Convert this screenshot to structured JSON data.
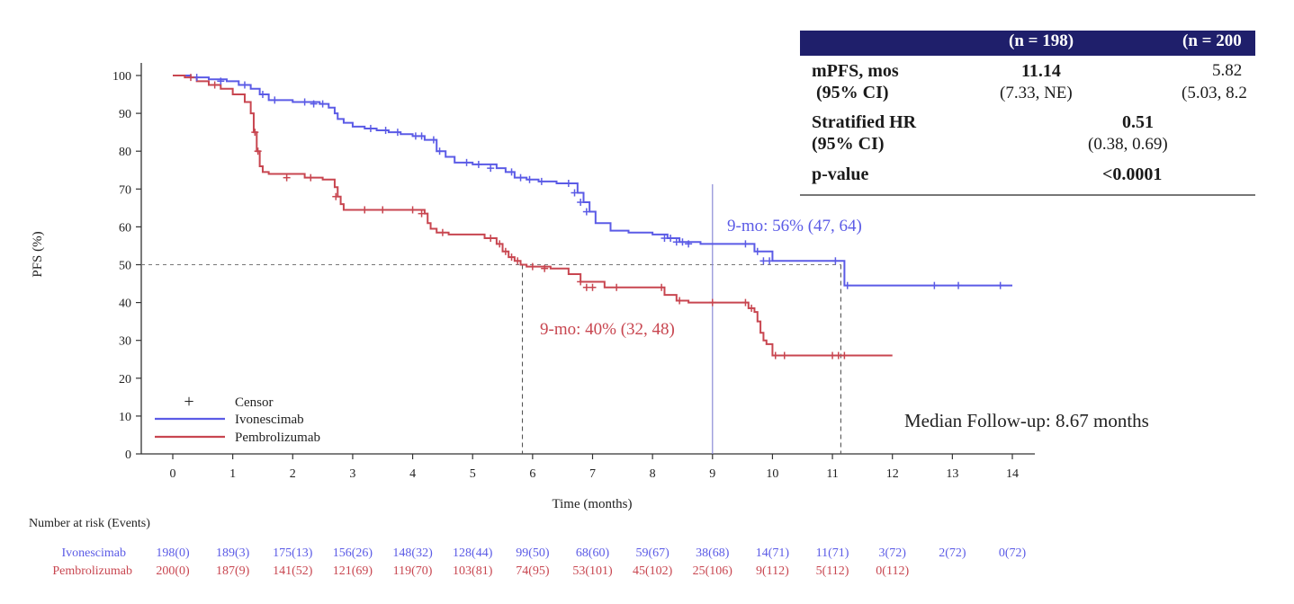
{
  "chart_data": {
    "type": "line",
    "subtype": "kaplan-meier",
    "ylabel": "PFS (%)",
    "xlabel": "Time (months)",
    "xlim": [
      0,
      14
    ],
    "ylim": [
      0,
      100
    ],
    "x_ticks": [
      0,
      1,
      2,
      3,
      4,
      5,
      6,
      7,
      8,
      9,
      10,
      11,
      12,
      13,
      14
    ],
    "y_ticks": [
      0,
      10,
      20,
      30,
      40,
      50,
      60,
      70,
      80,
      90,
      100
    ],
    "grid": false,
    "legend": {
      "placement": "bottom-left",
      "censor_label": "Censor",
      "censor_symbol": "+"
    },
    "series": [
      {
        "name": "Ivonescimab",
        "color": "#5b5be6",
        "x": [
          0,
          0.3,
          0.6,
          0.9,
          1.1,
          1.3,
          1.45,
          1.6,
          2.0,
          2.45,
          2.6,
          2.7,
          2.75,
          2.85,
          3.0,
          3.2,
          3.4,
          3.6,
          3.8,
          4.0,
          4.2,
          4.4,
          4.55,
          4.7,
          5.0,
          5.4,
          5.55,
          5.7,
          5.9,
          6.1,
          6.4,
          6.75,
          6.85,
          6.95,
          7.05,
          7.3,
          7.6,
          8.0,
          8.25,
          8.45,
          8.8,
          9.3,
          9.6,
          9.7,
          10.0,
          10.5,
          11.0,
          11.1,
          11.2,
          11.5,
          12.0,
          13.0,
          13.5,
          14.0
        ],
        "y": [
          100,
          99.5,
          99,
          98.5,
          97.5,
          96.5,
          95,
          93.5,
          93,
          92.5,
          91.5,
          90,
          88.5,
          87.5,
          86.5,
          86,
          85.5,
          85,
          84.5,
          84,
          83,
          80,
          78.5,
          77,
          76.5,
          75.5,
          74.5,
          73,
          72.5,
          72,
          71.5,
          69,
          66.5,
          64,
          61,
          59,
          58.5,
          58,
          57,
          56,
          55.5,
          55.5,
          55.5,
          53.5,
          51,
          51,
          51,
          51,
          44.5,
          44.5,
          44.5,
          44.5,
          44.5,
          44.5
        ],
        "censor_x": [
          0.4,
          0.8,
          1.2,
          1.5,
          1.7,
          2.2,
          2.35,
          2.5,
          3.3,
          3.55,
          3.75,
          4.05,
          4.15,
          4.35,
          4.45,
          4.9,
          5.1,
          5.3,
          5.65,
          5.8,
          5.95,
          6.15,
          6.6,
          6.7,
          6.8,
          6.9,
          8.2,
          8.3,
          8.4,
          8.5,
          8.6,
          9.55,
          9.75,
          9.85,
          9.95,
          11.05,
          11.25,
          12.7,
          13.1,
          13.8
        ],
        "censor_y": [
          99.5,
          98.5,
          97.5,
          95,
          93.5,
          93,
          92.5,
          92.5,
          86,
          85.5,
          85,
          84,
          84,
          83,
          80,
          77,
          76.5,
          75.5,
          74.5,
          73,
          72.5,
          72,
          71.5,
          69,
          66.5,
          64,
          57,
          57,
          56,
          56,
          55.5,
          55.5,
          53.5,
          51,
          51,
          51,
          44.5,
          44.5,
          44.5,
          44.5
        ]
      },
      {
        "name": "Pembrolizumab",
        "color": "#c84650",
        "x": [
          0,
          0.2,
          0.4,
          0.6,
          0.8,
          1.0,
          1.2,
          1.3,
          1.35,
          1.4,
          1.45,
          1.5,
          1.6,
          2.2,
          2.5,
          2.7,
          2.75,
          2.8,
          2.85,
          3.0,
          4.1,
          4.2,
          4.25,
          4.3,
          4.4,
          4.6,
          5.2,
          5.4,
          5.5,
          5.6,
          5.7,
          5.8,
          5.9,
          6.3,
          6.6,
          6.8,
          7.2,
          8.1,
          8.2,
          8.4,
          8.6,
          9.5,
          9.6,
          9.7,
          9.75,
          9.8,
          9.85,
          9.9,
          10.0,
          10.5,
          11.0,
          12.0
        ],
        "y": [
          100,
          99.5,
          98.5,
          97.5,
          96.5,
          95,
          93,
          90,
          85,
          80,
          76,
          74.5,
          74,
          73,
          72.5,
          70.5,
          68,
          66,
          64.5,
          64.5,
          64.5,
          63.5,
          61,
          59.5,
          58.5,
          58,
          57,
          55.5,
          53.5,
          52,
          51,
          50,
          49.5,
          49,
          47.5,
          45.5,
          44,
          44,
          42,
          40.5,
          40,
          40,
          38.5,
          37.5,
          35,
          32,
          30,
          29,
          26,
          26,
          26,
          26
        ],
        "censor_x": [
          0.3,
          0.7,
          1.37,
          1.42,
          1.9,
          2.3,
          2.72,
          3.2,
          3.5,
          4.0,
          4.15,
          4.5,
          5.3,
          5.45,
          5.55,
          5.65,
          5.75,
          6.0,
          6.2,
          6.8,
          6.9,
          7.0,
          7.4,
          8.15,
          8.45,
          9.0,
          9.55,
          9.65,
          10.05,
          10.2,
          11.0,
          11.1,
          11.2
        ],
        "censor_y": [
          99.5,
          97.5,
          85,
          80,
          73,
          73,
          68,
          64.5,
          64.5,
          64.5,
          63.5,
          58.5,
          57,
          55.5,
          53.5,
          52,
          51,
          49.5,
          49,
          45.5,
          44,
          44,
          44,
          44,
          40.5,
          40,
          40,
          38.5,
          26,
          26,
          26,
          26,
          26
        ]
      }
    ],
    "reference_lines": {
      "horizontal_y": 50,
      "vertical_x": 9,
      "median_drops_x": [
        5.83,
        11.14
      ]
    },
    "annotations": [
      {
        "text": "9-mo: 56% (47, 64)",
        "series": "Ivonescimab"
      },
      {
        "text": "9-mo: 40% (32, 48)",
        "series": "Pembrolizumab"
      },
      {
        "text": "Median Follow-up: 8.67 months"
      }
    ],
    "risk_table": {
      "title": "Number at risk (Events)",
      "rows": [
        {
          "label": "Ivonescimab",
          "values": [
            "198(0)",
            "189(3)",
            "175(13)",
            "156(26)",
            "148(32)",
            "128(44)",
            "99(50)",
            "68(60)",
            "59(67)",
            "38(68)",
            "14(71)",
            "11(71)",
            "3(72)",
            "2(72)",
            "0(72)"
          ]
        },
        {
          "label": "Pembrolizumab",
          "values": [
            "200(0)",
            "187(9)",
            "141(52)",
            "121(69)",
            "119(70)",
            "103(81)",
            "74(95)",
            "53(101)",
            "45(102)",
            "25(106)",
            "9(112)",
            "5(112)",
            "0(112)"
          ]
        }
      ]
    }
  },
  "summary_table": {
    "header": [
      "(n = 198)",
      "(n = 200"
    ],
    "rows": [
      {
        "label": "mPFS, mos",
        "label2": "(95% CI)",
        "ivo": "11.14",
        "ivo_ci": "(7.33, NE)",
        "pem": "5.82",
        "pem_ci": "(5.03, 8.2"
      },
      {
        "label": "Stratified HR",
        "label2": "(95% CI)",
        "value": "0.51",
        "value_ci": "(0.38, 0.69)"
      },
      {
        "label": "p-value",
        "value": "<0.0001"
      }
    ]
  }
}
